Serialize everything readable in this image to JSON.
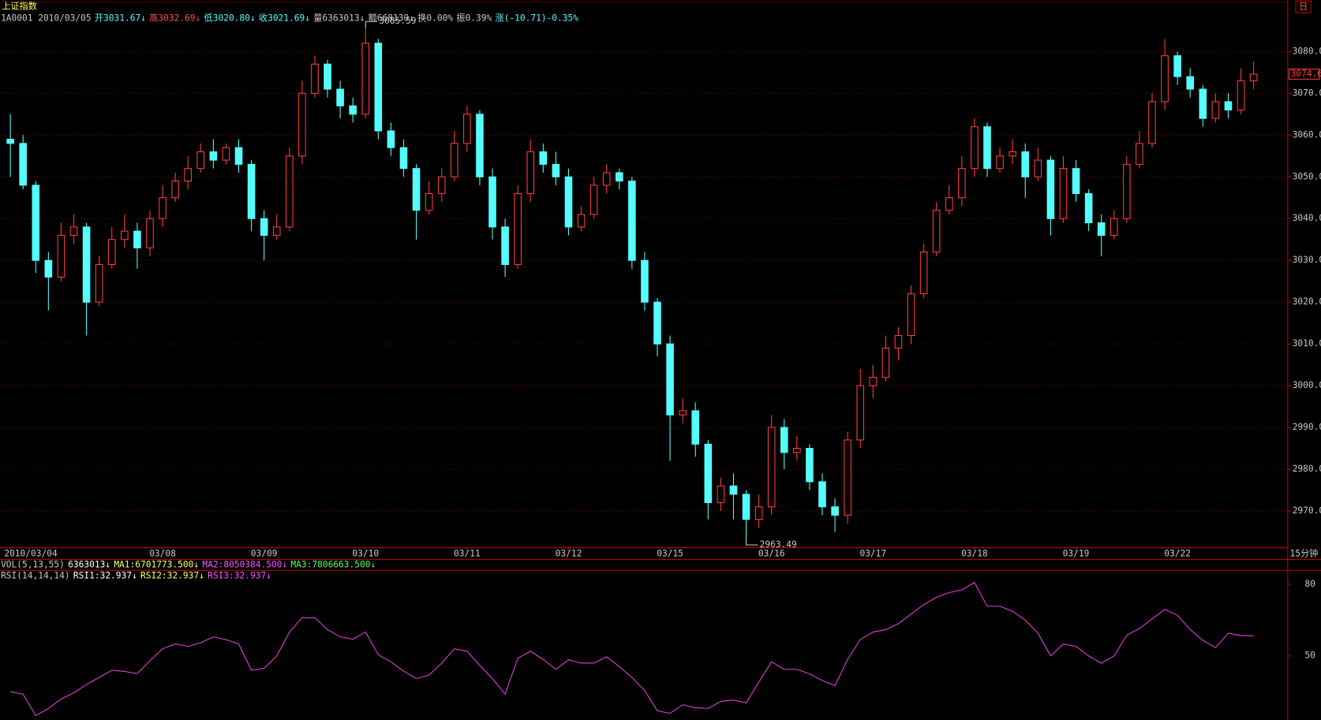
{
  "header": {
    "title": "上证指数",
    "info": [
      {
        "text": "1A0001 2010/03/05",
        "color": "#c8c8c8"
      },
      {
        "text": "开3031.67↓",
        "color": "#54fcfc"
      },
      {
        "text": "高3032.69↓",
        "color": "#ff5050"
      },
      {
        "text": "低3020.80↓",
        "color": "#54fcfc"
      },
      {
        "text": "收3021.69↓",
        "color": "#54fcfc"
      },
      {
        "text": "量6363013↓",
        "color": "#c8c8c8"
      },
      {
        "text": "额668130↓",
        "color": "#c8c8c8"
      },
      {
        "text": "换0.00%",
        "color": "#c8c8c8"
      },
      {
        "text": "振0.39%",
        "color": "#c8c8c8"
      },
      {
        "text": "涨(-10.71)-0.35%",
        "color": "#54fcfc"
      }
    ]
  },
  "vol_header": [
    {
      "text": "VOL(5,13,55)",
      "color": "#c8c8c8"
    },
    {
      "text": "6363013↓",
      "color": "#ffffff"
    },
    {
      "text": "MA1:6701773.500↓",
      "color": "#ffff54"
    },
    {
      "text": "MA2:8050384.500↓",
      "color": "#ff54ff"
    },
    {
      "text": "MA3:7806663.500↓",
      "color": "#54ff54"
    }
  ],
  "rsi_header": [
    {
      "text": "RSI(14,14,14)",
      "color": "#c8c8c8"
    },
    {
      "text": "RSI1:32.937↓",
      "color": "#ffffff"
    },
    {
      "text": "RSI2:32.937↓",
      "color": "#ffff54"
    },
    {
      "text": "RSI3:32.937↓",
      "color": "#ff54ff"
    }
  ],
  "panel": {
    "period": "日",
    "interval": "15分钟"
  },
  "chart_data": [
    {
      "type": "candlestick",
      "up_color": "#ff3c3c",
      "down_color": "#54fcfc",
      "grid": true,
      "categories": [
        "2010/03/04",
        null,
        null,
        null,
        null,
        null,
        null,
        null,
        null,
        null,
        null,
        null,
        "03/08",
        null,
        null,
        null,
        null,
        null,
        null,
        null,
        "03/09",
        null,
        null,
        null,
        null,
        null,
        null,
        null,
        "03/10",
        null,
        null,
        null,
        null,
        null,
        null,
        null,
        "03/11",
        null,
        null,
        null,
        null,
        null,
        null,
        null,
        "03/12",
        null,
        null,
        null,
        null,
        null,
        null,
        null,
        "03/15",
        null,
        null,
        null,
        null,
        null,
        null,
        null,
        "03/16",
        null,
        null,
        null,
        null,
        null,
        null,
        null,
        "03/17",
        null,
        null,
        null,
        null,
        null,
        null,
        null,
        "03/18",
        null,
        null,
        null,
        null,
        null,
        null,
        null,
        "03/19",
        null,
        null,
        null,
        null,
        null,
        null,
        null,
        "03/22",
        null,
        null,
        null,
        null,
        null,
        null
      ],
      "open": [
        3059,
        3058,
        3048,
        3030,
        3026,
        3036,
        3038,
        3020,
        3029,
        3035,
        3037,
        3033,
        3040,
        3045,
        3049,
        3052,
        3056,
        3054,
        3057,
        3053,
        3040,
        3036,
        3038,
        3055,
        3070,
        3077,
        3071,
        3067,
        3065,
        3082,
        3061,
        3057,
        3052,
        3042,
        3046,
        3050,
        3058,
        3065,
        3050,
        3038,
        3029,
        3046,
        3056,
        3053,
        3050,
        3038,
        3041,
        3048,
        3051,
        3049,
        3030,
        3020,
        3010,
        2993,
        2994,
        2986,
        2972,
        2976,
        2974,
        2968,
        2971,
        2990,
        2984,
        2985,
        2977,
        2971,
        2969,
        2987,
        3000,
        3002,
        3009,
        3012,
        3022,
        3032,
        3042,
        3045,
        3052,
        3062,
        3052,
        3055,
        3056,
        3050,
        3054,
        3040,
        3052,
        3046,
        3039,
        3036,
        3040,
        3053,
        3058,
        3068,
        3079,
        3074,
        3071,
        3064,
        3068,
        3066,
        3073
      ],
      "high": [
        3065,
        3060,
        3049,
        3032,
        3039,
        3041,
        3039,
        3031,
        3038,
        3041,
        3039,
        3042,
        3048,
        3051,
        3055,
        3058,
        3059,
        3058,
        3059,
        3054,
        3042,
        3041,
        3057,
        3073,
        3079,
        3078,
        3073,
        3069,
        3085.59,
        3083,
        3063,
        3059,
        3053,
        3049,
        3052,
        3061,
        3067,
        3066,
        3052,
        3040,
        3048,
        3059,
        3058,
        3056,
        3052,
        3043,
        3050,
        3053,
        3052,
        3050,
        3032,
        3021,
        3012,
        2997,
        2996,
        2987,
        2978,
        2979,
        2975,
        2974,
        2993,
        2992,
        2988,
        2986,
        2979,
        2973,
        2989,
        3004,
        3005,
        3012,
        3014,
        3024,
        3034,
        3044,
        3048,
        3055,
        3064,
        3063,
        3057,
        3059,
        3058,
        3057,
        3055,
        3055,
        3054,
        3047,
        3041,
        3042,
        3055,
        3061,
        3070,
        3083,
        3080,
        3076,
        3072,
        3070,
        3070,
        3076,
        3077.6
      ],
      "low": [
        3050,
        3047,
        3027,
        3018,
        3025,
        3034,
        3012,
        3019,
        3028,
        3033,
        3028,
        3031,
        3038,
        3044,
        3047,
        3051,
        3052,
        3053,
        3051,
        3037,
        3030,
        3035,
        3037,
        3053,
        3069,
        3069,
        3064,
        3063,
        3064,
        3059,
        3055,
        3050,
        3035,
        3041,
        3044,
        3049,
        3056,
        3048,
        3035,
        3026,
        3028,
        3044,
        3051,
        3048,
        3036,
        3037,
        3040,
        3046,
        3047,
        3028,
        3018,
        3007,
        2982,
        2991,
        2983,
        2968,
        2970,
        2968,
        2963.49,
        2966,
        2969,
        2980,
        2982,
        2975,
        2969,
        2965,
        2967,
        2985,
        2997,
        3001,
        3006,
        3010,
        3021,
        3031,
        3041,
        3043,
        3050,
        3050,
        3051,
        3053,
        3045,
        3049,
        3036,
        3039,
        3044,
        3037,
        3031,
        3035,
        3039,
        3052,
        3057,
        3066,
        3072,
        3069,
        3062,
        3063,
        3064,
        3065,
        3071
      ],
      "close": [
        3058,
        3048,
        3030,
        3026,
        3036,
        3038,
        3020,
        3029,
        3035,
        3037,
        3033,
        3040,
        3045,
        3049,
        3052,
        3056,
        3054,
        3057,
        3053,
        3040,
        3036,
        3038,
        3055,
        3070,
        3077,
        3071,
        3067,
        3065,
        3082,
        3061,
        3057,
        3052,
        3042,
        3046,
        3050,
        3058,
        3065,
        3050,
        3038,
        3029,
        3046,
        3056,
        3053,
        3050,
        3038,
        3041,
        3048,
        3051,
        3049,
        3030,
        3020,
        3010,
        2993,
        2994,
        2986,
        2972,
        2976,
        2974,
        2968,
        2971,
        2990,
        2984,
        2985,
        2977,
        2971,
        2969,
        2987,
        3000,
        3002,
        3009,
        3012,
        3022,
        3032,
        3042,
        3045,
        3052,
        3062,
        3052,
        3055,
        3056,
        3050,
        3054,
        3040,
        3052,
        3046,
        3039,
        3036,
        3040,
        3053,
        3058,
        3068,
        3079,
        3074,
        3071,
        3064,
        3068,
        3066,
        3073,
        3074.6
      ],
      "ylim": [
        2961.3,
        3089.3
      ],
      "yticks": [
        {
          "value": 2970,
          "label": "2970.0"
        },
        {
          "value": 2980,
          "label": "2980.0"
        },
        {
          "value": 2990,
          "label": "2990.0"
        },
        {
          "value": 3000,
          "label": "3000.0"
        },
        {
          "value": 3010,
          "label": "3010.0"
        },
        {
          "value": 3020,
          "label": "3020.0"
        },
        {
          "value": 3030,
          "label": "3030.0"
        },
        {
          "value": 3040,
          "label": "3040.0"
        },
        {
          "value": 3050,
          "label": "3050.0"
        },
        {
          "value": 3060,
          "label": "3060.0"
        },
        {
          "value": 3070,
          "label": "3070.0"
        },
        {
          "value": 3080,
          "label": "3080.0"
        }
      ]
    },
    {
      "type": "line",
      "color": "#e040e0",
      "values": [
        35,
        34,
        25,
        28,
        32,
        34.5,
        38,
        41,
        44,
        43.5,
        42.6,
        48,
        53,
        55,
        54,
        55.5,
        58,
        56.8,
        55,
        44,
        44.8,
        50,
        60,
        66,
        66,
        61,
        58,
        57,
        60,
        50.5,
        47.5,
        43.6,
        40.5,
        42,
        47,
        53,
        52,
        46,
        40.5,
        34,
        49,
        52,
        48.5,
        44.4,
        48.4,
        47,
        47,
        49.6,
        45.5,
        41,
        35.5,
        27,
        26,
        29.5,
        28.3,
        28,
        31,
        31.5,
        30.4,
        39,
        47.5,
        44.4,
        44.4,
        42.5,
        39.7,
        37.5,
        48.5,
        56.9,
        60,
        61,
        63.5,
        67.5,
        71.5,
        74.6,
        76.5,
        77.7,
        80.7,
        70.8,
        70.8,
        68.7,
        65,
        59.5,
        50,
        55,
        54,
        50,
        47,
        50,
        58.7,
        61.5,
        65.5,
        69.5,
        67,
        61,
        56.5,
        53.5,
        59.5,
        58.5,
        58.5
      ],
      "ylim": [
        23.2,
        85.6
      ],
      "yticks": [
        50,
        80
      ]
    }
  ]
}
